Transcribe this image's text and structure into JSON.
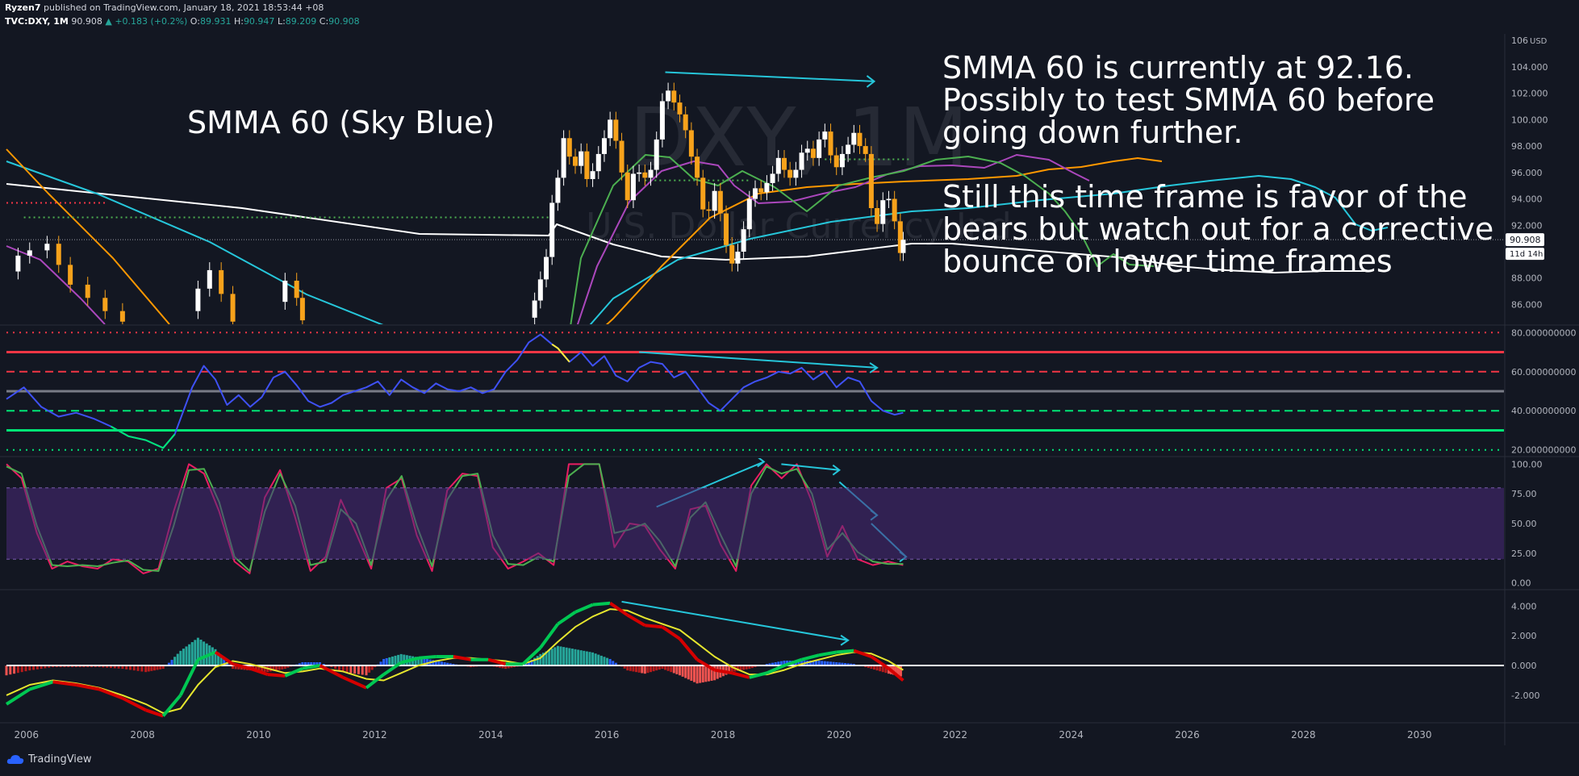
{
  "header": {
    "author": "Ryzen7",
    "published_text": "published on TradingView.com, January 18, 2021 18:53:44 +08",
    "symbol": "TVC:DXY, 1M",
    "last": "90.908",
    "change": "+0.183 (+0.2%)",
    "o_label": "O:",
    "o": "89.931",
    "h_label": "H:",
    "h": "90.947",
    "l_label": "L:",
    "l": "89.209",
    "c_label": "C:",
    "c": "90.908"
  },
  "watermark": {
    "title": "DXY, 1M",
    "subtitle": "U.S. Dollar Currency Ind"
  },
  "annotations": {
    "left": "SMMA 60 (Sky Blue)",
    "right": "SMMA 60 is currently at 92.16.\nPossibly to test SMMA 60 before\ngoing down further.\n\nStill this time frame is favor of the\nbears but watch out for a corrective\nbounce on lower time frames"
  },
  "footer": {
    "brand": "TradingView"
  },
  "price_badge": {
    "value": "90.908",
    "countdown": "11d 14h"
  },
  "colors": {
    "background": "#131722",
    "up": "#ffffff",
    "down": "#f7a21b",
    "smma60": "#26c6da",
    "long_ma": "#ffffff",
    "rsi": "#3f51f5",
    "stoch_k": "#e91e63",
    "stoch_d": "#4caf50"
  },
  "chart_data": [
    {
      "type": "candlestick",
      "pane": "price",
      "ylabel": "USD",
      "y_ticks": [
        "86.000",
        "88.000",
        "90.000",
        "92.000",
        "94.000",
        "96.000",
        "98.000",
        "100.000",
        "102.000",
        "104.000",
        "106"
      ],
      "ylim": [
        84.5,
        106.5
      ],
      "x_ticks": [
        "2006",
        "2008",
        "2010",
        "2012",
        "2014",
        "2016",
        "2018",
        "2020",
        "2022",
        "2024",
        "2026",
        "2028",
        "2030"
      ],
      "xlim": [
        2005.6,
        2031.4
      ],
      "close_series": [
        [
          2005.6,
          88.5
        ],
        [
          2005.8,
          89.7
        ],
        [
          2006.0,
          90.1
        ],
        [
          2006.3,
          90.6
        ],
        [
          2006.5,
          89.0
        ],
        [
          2006.7,
          87.5
        ],
        [
          2007.0,
          86.5
        ],
        [
          2007.3,
          85.5
        ],
        [
          2007.6,
          84.7
        ],
        [
          2008.7,
          85.5
        ],
        [
          2008.9,
          87.2
        ],
        [
          2009.1,
          88.6
        ],
        [
          2009.3,
          86.8
        ],
        [
          2009.5,
          84.7
        ],
        [
          2010.3,
          86.2
        ],
        [
          2010.4,
          87.8
        ],
        [
          2010.6,
          86.5
        ],
        [
          2010.7,
          84.8
        ],
        [
          2014.6,
          85.0
        ],
        [
          2014.7,
          86.3
        ],
        [
          2014.8,
          87.9
        ],
        [
          2014.9,
          89.6
        ],
        [
          2015.0,
          93.7
        ],
        [
          2015.1,
          95.6
        ],
        [
          2015.2,
          98.6
        ],
        [
          2015.3,
          97.2
        ],
        [
          2015.4,
          96.5
        ],
        [
          2015.5,
          97.6
        ],
        [
          2015.6,
          95.5
        ],
        [
          2015.7,
          96.1
        ],
        [
          2015.8,
          97.4
        ],
        [
          2015.9,
          98.6
        ],
        [
          2016.0,
          100.0
        ],
        [
          2016.1,
          98.4
        ],
        [
          2016.2,
          96.0
        ],
        [
          2016.3,
          93.9
        ],
        [
          2016.4,
          95.9
        ],
        [
          2016.5,
          96.0
        ],
        [
          2016.6,
          95.6
        ],
        [
          2016.7,
          96.2
        ],
        [
          2016.8,
          98.5
        ],
        [
          2016.9,
          101.4
        ],
        [
          2017.0,
          102.2
        ],
        [
          2017.1,
          101.3
        ],
        [
          2017.2,
          100.4
        ],
        [
          2017.3,
          99.2
        ],
        [
          2017.4,
          97.2
        ],
        [
          2017.5,
          95.6
        ],
        [
          2017.6,
          93.2
        ],
        [
          2017.7,
          93.1
        ],
        [
          2017.8,
          94.6
        ],
        [
          2017.9,
          92.9
        ],
        [
          2018.0,
          90.5
        ],
        [
          2018.1,
          89.1
        ],
        [
          2018.2,
          90.0
        ],
        [
          2018.3,
          91.7
        ],
        [
          2018.4,
          94.0
        ],
        [
          2018.5,
          94.8
        ],
        [
          2018.6,
          94.5
        ],
        [
          2018.7,
          95.2
        ],
        [
          2018.8,
          95.9
        ],
        [
          2018.9,
          97.1
        ],
        [
          2019.0,
          96.2
        ],
        [
          2019.1,
          95.6
        ],
        [
          2019.2,
          96.2
        ],
        [
          2019.3,
          97.5
        ],
        [
          2019.4,
          97.8
        ],
        [
          2019.5,
          97.1
        ],
        [
          2019.6,
          98.5
        ],
        [
          2019.7,
          99.1
        ],
        [
          2019.8,
          97.3
        ],
        [
          2019.9,
          96.4
        ],
        [
          2020.0,
          97.4
        ],
        [
          2020.1,
          98.1
        ],
        [
          2020.2,
          99.0
        ],
        [
          2020.3,
          98.0
        ],
        [
          2020.4,
          97.4
        ],
        [
          2020.5,
          93.3
        ],
        [
          2020.6,
          92.1
        ],
        [
          2020.7,
          93.9
        ],
        [
          2020.8,
          94.0
        ],
        [
          2020.9,
          92.3
        ],
        [
          2021.0,
          89.9
        ],
        [
          2021.05,
          90.9
        ]
      ],
      "horizontal_levels": [
        {
          "name": "red-dotted",
          "value": 93.7,
          "xlim": [
            2005.6,
            2007.3
          ],
          "color": "#f23645"
        },
        {
          "name": "green-dotted-1",
          "value": 92.6,
          "xlim": [
            2005.9,
            2015.0
          ],
          "color": "#4caf50"
        },
        {
          "name": "green-dotted-2",
          "value": 95.4,
          "xlim": [
            2016.6,
            2018.4
          ],
          "color": "#4caf50"
        },
        {
          "name": "green-dotted-3",
          "value": 97.0,
          "xlim": [
            2019.7,
            2021.2
          ],
          "color": "#4caf50"
        },
        {
          "name": "last-price",
          "value": 90.908,
          "xlim": [
            2005.6,
            2031.4
          ],
          "color": "#9598a1"
        }
      ],
      "trendline": {
        "from": [
          2016.95,
          103.6
        ],
        "to": [
          2020.55,
          102.9
        ],
        "color": "#26c6da"
      }
    },
    {
      "type": "line",
      "pane": "rsi",
      "y_ticks": [
        "20.000000000",
        "40.000000000",
        "60.000000000",
        "80.000000000"
      ],
      "ylim": [
        17,
        83
      ],
      "levels": [
        {
          "value": 80,
          "style": "dotted",
          "color": "#f23645"
        },
        {
          "value": 70,
          "style": "solid",
          "color": "#f23645"
        },
        {
          "value": 60,
          "style": "dashed",
          "color": "#f23645"
        },
        {
          "value": 50,
          "style": "solid",
          "color": "#787b86"
        },
        {
          "value": 40,
          "style": "dashed",
          "color": "#00e676"
        },
        {
          "value": 30,
          "style": "solid",
          "color": "#00e676"
        },
        {
          "value": 20,
          "style": "dotted",
          "color": "#00e676"
        }
      ],
      "x": [
        2005.6,
        2005.9,
        2006.2,
        2006.5,
        2006.8,
        2007.1,
        2007.4,
        2007.7,
        2008.0,
        2008.3,
        2008.5,
        2008.8,
        2009.0,
        2009.2,
        2009.4,
        2009.6,
        2009.8,
        2010.0,
        2010.2,
        2010.4,
        2010.6,
        2010.8,
        2011.0,
        2011.2,
        2011.4,
        2011.6,
        2011.8,
        2012.0,
        2012.2,
        2012.4,
        2012.6,
        2012.8,
        2013.0,
        2013.2,
        2013.4,
        2013.6,
        2013.8,
        2014.0,
        2014.2,
        2014.4,
        2014.6,
        2014.8,
        2015.0,
        2015.1,
        2015.3,
        2015.5,
        2015.7,
        2015.9,
        2016.1,
        2016.3,
        2016.5,
        2016.7,
        2016.9,
        2017.1,
        2017.3,
        2017.5,
        2017.7,
        2017.9,
        2018.1,
        2018.3,
        2018.5,
        2018.7,
        2018.9,
        2019.1,
        2019.3,
        2019.5,
        2019.7,
        2019.9,
        2020.1,
        2020.3,
        2020.5,
        2020.7,
        2020.9,
        2021.05
      ],
      "values": [
        46,
        52,
        42,
        37,
        39,
        36,
        32,
        27,
        25,
        21,
        28,
        52,
        63,
        56,
        43,
        48,
        42,
        47,
        57,
        60,
        53,
        45,
        42,
        44,
        48,
        50,
        52,
        55,
        48,
        56,
        52,
        49,
        54,
        51,
        50,
        52,
        49,
        51,
        60,
        66,
        75,
        79,
        74,
        72,
        65,
        70,
        63,
        68,
        58,
        55,
        62,
        65,
        64,
        57,
        60,
        52,
        44,
        40,
        46,
        52,
        55,
        57,
        60,
        59,
        62,
        56,
        60,
        52,
        57,
        55,
        45,
        40,
        38,
        39
      ],
      "overbought_highlight": [
        2014.9,
        2015.3
      ]
    },
    {
      "type": "line",
      "pane": "stoch_rsi",
      "y_ticks": [
        "0.00",
        "25.00",
        "50.00",
        "75.00",
        "100.00"
      ],
      "ylim": [
        -5,
        105
      ],
      "band": [
        20,
        80
      ],
      "series": [
        {
          "key": "k",
          "values": [
            100,
            88,
            42,
            12,
            18,
            14,
            12,
            20,
            18,
            8,
            12,
            60,
            100,
            92,
            60,
            18,
            8,
            72,
            95,
            55,
            10,
            22,
            70,
            42,
            12,
            80,
            88,
            40,
            10,
            78,
            92,
            90,
            30,
            12,
            18,
            25,
            15,
            100,
            100,
            100,
            30,
            50,
            48,
            28,
            12,
            62,
            65,
            32,
            10,
            82,
            100,
            88,
            100,
            68,
            22,
            48,
            20,
            15,
            18,
            15
          ]
        },
        {
          "key": "d",
          "values": [
            98,
            92,
            48,
            15,
            14,
            15,
            14,
            17,
            19,
            11,
            10,
            48,
            95,
            96,
            68,
            22,
            10,
            60,
            92,
            65,
            15,
            18,
            62,
            50,
            15,
            70,
            90,
            48,
            14,
            70,
            90,
            92,
            40,
            16,
            15,
            22,
            18,
            90,
            100,
            100,
            42,
            45,
            50,
            35,
            14,
            55,
            68,
            40,
            14,
            75,
            98,
            92,
            96,
            75,
            28,
            42,
            26,
            18,
            16,
            16
          ]
        }
      ],
      "x_range": [
        2005.6,
        2021.05
      ]
    },
    {
      "type": "line",
      "pane": "macd",
      "y_ticks": [
        "-2.000",
        "0.000",
        "2.000",
        "4.000"
      ],
      "ylim": [
        -3.8,
        5.0
      ],
      "zero_line": 0,
      "x": [
        2005.6,
        2006.0,
        2006.4,
        2006.8,
        2007.2,
        2007.6,
        2008.0,
        2008.3,
        2008.6,
        2008.9,
        2009.2,
        2009.5,
        2009.8,
        2010.1,
        2010.4,
        2010.7,
        2011.0,
        2011.4,
        2011.8,
        2012.1,
        2012.4,
        2012.7,
        2013.0,
        2013.3,
        2013.6,
        2013.9,
        2014.2,
        2014.5,
        2014.8,
        2015.1,
        2015.4,
        2015.7,
        2016.0,
        2016.3,
        2016.6,
        2016.9,
        2017.2,
        2017.5,
        2017.8,
        2018.1,
        2018.4,
        2018.7,
        2019.0,
        2019.3,
        2019.6,
        2019.9,
        2020.2,
        2020.5,
        2020.8,
        2021.05
      ],
      "macd": [
        -2.6,
        -1.6,
        -1.1,
        -1.3,
        -1.6,
        -2.2,
        -3.0,
        -3.4,
        -2.0,
        0.4,
        0.9,
        0.1,
        -0.2,
        -0.6,
        -0.7,
        -0.2,
        0.0,
        -0.8,
        -1.5,
        -0.6,
        0.2,
        0.5,
        0.6,
        0.6,
        0.4,
        0.4,
        0.1,
        0.1,
        1.2,
        2.8,
        3.6,
        4.1,
        4.2,
        3.4,
        2.7,
        2.6,
        1.8,
        0.4,
        -0.3,
        -0.5,
        -0.8,
        -0.5,
        0.0,
        0.4,
        0.7,
        0.9,
        1.0,
        0.6,
        -0.2,
        -1.0
      ],
      "signal": [
        -2.0,
        -1.3,
        -1.0,
        -1.2,
        -1.5,
        -2.0,
        -2.6,
        -3.2,
        -2.9,
        -1.3,
        -0.1,
        0.3,
        0.1,
        -0.2,
        -0.5,
        -0.4,
        -0.2,
        -0.4,
        -0.9,
        -1.0,
        -0.5,
        0.0,
        0.3,
        0.5,
        0.5,
        0.4,
        0.3,
        0.1,
        0.5,
        1.6,
        2.6,
        3.3,
        3.8,
        3.7,
        3.2,
        2.8,
        2.4,
        1.5,
        0.6,
        -0.1,
        -0.6,
        -0.6,
        -0.3,
        0.1,
        0.4,
        0.7,
        0.9,
        0.8,
        0.3,
        -0.3
      ],
      "trendline": {
        "from": [
          2016.2,
          4.3
        ],
        "to": [
          2020.1,
          1.7
        ],
        "color": "#26c6da"
      }
    }
  ]
}
